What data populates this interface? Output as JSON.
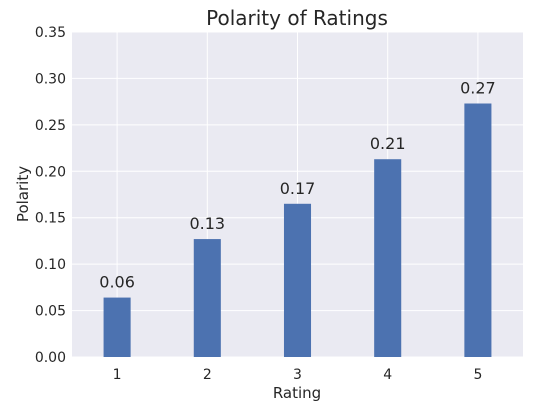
{
  "chart_data": {
    "type": "bar",
    "title": "Polarity of Ratings",
    "xlabel": "Rating",
    "ylabel": "Polarity",
    "categories": [
      "1",
      "2",
      "3",
      "4",
      "5"
    ],
    "values": [
      0.064,
      0.127,
      0.165,
      0.213,
      0.273
    ],
    "data_labels": [
      "0.06",
      "0.13",
      "0.17",
      "0.21",
      "0.27"
    ],
    "ylim": [
      0,
      0.35
    ],
    "yticks": [
      "0.00",
      "0.05",
      "0.10",
      "0.15",
      "0.20",
      "0.25",
      "0.30",
      "0.35"
    ],
    "grid": true,
    "colors": {
      "bar": "#4c72b0",
      "plot_background": "#eaeaf2",
      "grid": "#ffffff"
    }
  }
}
